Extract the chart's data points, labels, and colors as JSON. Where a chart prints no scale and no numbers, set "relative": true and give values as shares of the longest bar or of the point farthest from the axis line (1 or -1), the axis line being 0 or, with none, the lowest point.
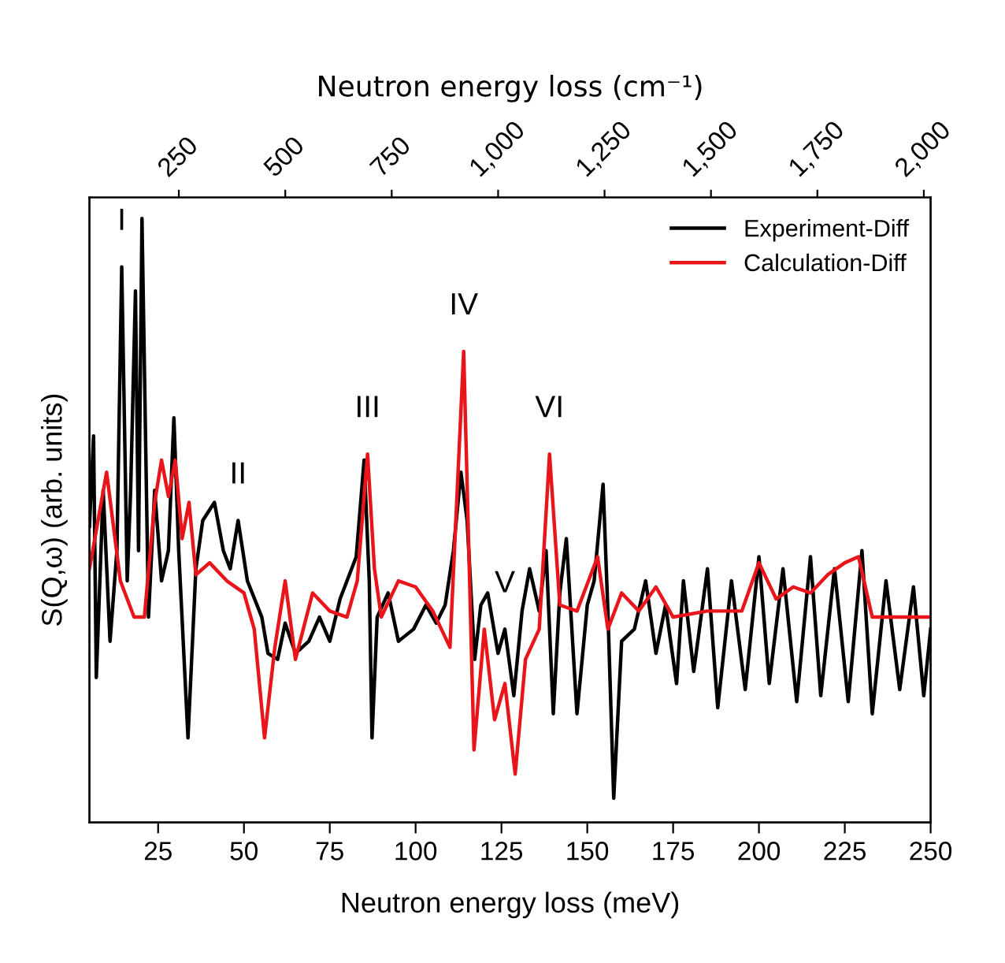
{
  "chart_data": {
    "type": "line",
    "relative": true,
    "xlabel": "Neutron energy loss (meV)",
    "x2label": "Neutron energy loss (cm⁻¹)",
    "ylabel": "S(Q,ω) (arb. units)",
    "xlim": [
      5,
      250
    ],
    "xticks": [
      25,
      50,
      75,
      100,
      125,
      150,
      175,
      200,
      225,
      250
    ],
    "x2lim": [
      40,
      2016
    ],
    "x2ticks": [
      {
        "value": 250,
        "label": "250"
      },
      {
        "value": 500,
        "label": "500"
      },
      {
        "value": 750,
        "label": "750"
      },
      {
        "value": 1000,
        "label": "1,000"
      },
      {
        "value": 1250,
        "label": "1,250"
      },
      {
        "value": 1500,
        "label": "1,500"
      },
      {
        "value": 1750,
        "label": "1,750"
      },
      {
        "value": 2000,
        "label": "2,000"
      }
    ],
    "tick_labels": "x",
    "grid": false,
    "legend": "top right",
    "marker": "none",
    "line_style": "solid",
    "series": [
      {
        "name": "Experiment-Diff",
        "color": "#000000",
        "x": [
          5,
          6.2,
          7,
          9,
          11,
          13,
          14.4,
          16,
          17,
          18.4,
          19.3,
          20.3,
          22.2,
          24,
          26,
          28,
          29.6,
          31,
          33.7,
          36,
          38,
          41.4,
          44,
          46,
          48.3,
          51,
          55.2,
          57,
          59.8,
          62,
          65,
          68.9,
          72,
          75,
          78,
          82.7,
          85,
          86.5,
          87.3,
          88.8,
          92,
          95,
          99.4,
          103,
          106,
          108.6,
          111,
          113.2,
          115,
          117.2,
          119,
          121,
          124,
          126,
          128.6,
          131,
          133.2,
          136,
          138,
          140.1,
          142,
          143.9,
          147,
          150,
          152,
          154.6,
          156,
          157.7,
          160,
          163.7,
          167,
          170,
          172.8,
          176,
          178,
          181,
          185,
          188,
          192,
          196,
          200,
          203,
          207,
          211,
          215,
          218,
          222,
          226,
          230,
          233,
          237,
          241,
          245,
          248,
          250
        ],
        "values": [
          0.49,
          0.64,
          0.24,
          0.55,
          0.3,
          0.45,
          0.92,
          0.4,
          0.55,
          0.88,
          0.45,
          1.0,
          0.34,
          0.55,
          0.4,
          0.45,
          0.67,
          0.45,
          0.14,
          0.42,
          0.5,
          0.53,
          0.45,
          0.42,
          0.5,
          0.4,
          0.34,
          0.28,
          0.27,
          0.33,
          0.28,
          0.3,
          0.34,
          0.3,
          0.37,
          0.44,
          0.6,
          0.4,
          0.14,
          0.34,
          0.38,
          0.3,
          0.32,
          0.36,
          0.33,
          0.36,
          0.45,
          0.58,
          0.5,
          0.27,
          0.36,
          0.38,
          0.28,
          0.32,
          0.21,
          0.35,
          0.42,
          0.35,
          0.45,
          0.18,
          0.38,
          0.47,
          0.18,
          0.36,
          0.4,
          0.56,
          0.35,
          0.04,
          0.3,
          0.32,
          0.4,
          0.28,
          0.36,
          0.23,
          0.4,
          0.25,
          0.42,
          0.19,
          0.4,
          0.22,
          0.44,
          0.23,
          0.42,
          0.2,
          0.44,
          0.21,
          0.42,
          0.2,
          0.45,
          0.18,
          0.4,
          0.22,
          0.39,
          0.21,
          0.32
        ]
      },
      {
        "name": "Calculation-Diff",
        "color": "#e8151b",
        "x": [
          5,
          10,
          14,
          18,
          21,
          24,
          26,
          28,
          30,
          32,
          34,
          36,
          40,
          45,
          50,
          53,
          56,
          59,
          62,
          65,
          70,
          75,
          80,
          83,
          86,
          88,
          90,
          95,
          100,
          105,
          110,
          114,
          117,
          120,
          123,
          126,
          129,
          132,
          136,
          139,
          142,
          147,
          153,
          156,
          160,
          165,
          170,
          175,
          185,
          195,
          200,
          205,
          210,
          215,
          220,
          225,
          229,
          233,
          240,
          250
        ],
        "values": [
          0.42,
          0.58,
          0.4,
          0.34,
          0.34,
          0.53,
          0.6,
          0.54,
          0.6,
          0.47,
          0.53,
          0.41,
          0.43,
          0.4,
          0.38,
          0.32,
          0.14,
          0.29,
          0.4,
          0.27,
          0.38,
          0.35,
          0.34,
          0.4,
          0.61,
          0.42,
          0.34,
          0.4,
          0.39,
          0.35,
          0.29,
          0.78,
          0.12,
          0.32,
          0.17,
          0.23,
          0.08,
          0.27,
          0.32,
          0.61,
          0.36,
          0.35,
          0.44,
          0.32,
          0.38,
          0.35,
          0.39,
          0.34,
          0.35,
          0.35,
          0.43,
          0.37,
          0.39,
          0.38,
          0.41,
          0.43,
          0.44,
          0.34,
          0.34,
          0.34
        ]
      }
    ],
    "annotations": [
      {
        "text": "I",
        "x": 14.4,
        "y": 0.92
      },
      {
        "text": "II",
        "x": 48.3,
        "y": 0.5
      },
      {
        "text": "III",
        "x": 86,
        "y": 0.61
      },
      {
        "text": "IV",
        "x": 114,
        "y": 0.78
      },
      {
        "text": "V",
        "x": 126,
        "y": 0.32
      },
      {
        "text": "VI",
        "x": 139,
        "y": 0.61
      }
    ]
  }
}
